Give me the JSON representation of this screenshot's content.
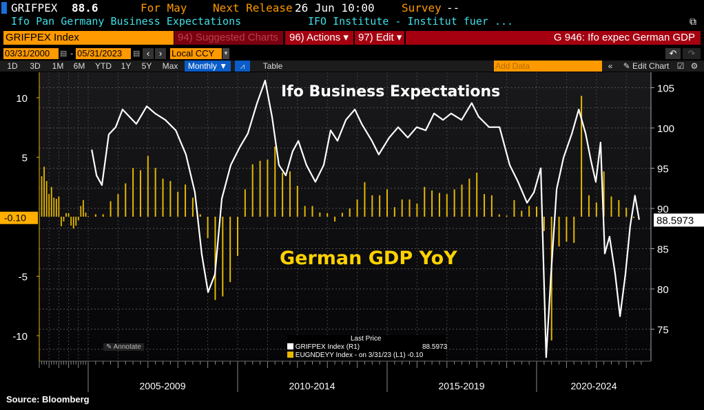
{
  "header": {
    "ticker": "GRIFPEX",
    "value": "88.6",
    "period": "For May",
    "next_release_label": "Next Release",
    "next_release": "26 Jun 10:00",
    "survey_label": "Survey",
    "survey": "--",
    "description": "Ifo Pan Germany Business Expectations",
    "source": "IFO Institute - Institut fuer ..."
  },
  "toolbar": {
    "security": "GRIFPEX Index",
    "suggested": "94) Suggested Charts",
    "actions": "96) Actions ▾",
    "edit": "97) Edit ▾",
    "chart_name": "G 946: Ifo expec German GDP"
  },
  "dates": {
    "start": "03/31/2000",
    "end": "05/31/2023",
    "currency": "Local CCY"
  },
  "periods": [
    "1D",
    "3D",
    "1M",
    "6M",
    "YTD",
    "1Y",
    "5Y",
    "Max"
  ],
  "frequency": "Monthly ▼",
  "table_label": "Table",
  "add_data_placeholder": "Add Data",
  "edit_chart": "Edit Chart",
  "annotate": "Annotate",
  "source": "Source: Bloomberg",
  "colors": {
    "orange": "#ff9900",
    "red": "#a50010",
    "bar": "#e6b800",
    "line": "#ffffff",
    "cyan": "#3ee0e8"
  },
  "chart_data": {
    "type": "bar+line",
    "title": "Ifo Business Expectations",
    "annotation": "German GDP YoY",
    "x_labels": [
      "2005-2009",
      "2010-2014",
      "2015-2019",
      "2020-2024"
    ],
    "left_axis": {
      "ticks": [
        10,
        5,
        -5,
        -10
      ],
      "range": [
        -12,
        12
      ],
      "last_label": "-0.10"
    },
    "right_axis": {
      "ticks": [
        105,
        100,
        95,
        90,
        85,
        80,
        75
      ],
      "range": [
        71.5,
        107.5
      ],
      "last_label": "88.5973"
    },
    "legend": {
      "header": "Last Price",
      "items": [
        {
          "name": "GRIFPEX Index  (R1)",
          "value": "88.5973",
          "color": "#ffffff"
        },
        {
          "name": "EUGNDEYY Index -  on 3/31/23  (L1)",
          "value": "-0.10",
          "color": "#e6b800"
        }
      ]
    },
    "gdp_start_quarter": "2000Q1",
    "gdp_yoy": [
      3.4,
      4.2,
      3.0,
      1.9,
      2.5,
      1.6,
      1.5,
      1.7,
      -0.8,
      -0.4,
      0.3,
      0.3,
      -0.75,
      -1.0,
      -0.75,
      -0.3,
      0.9,
      1.4,
      0.35,
      0.05,
      0.2,
      0.2,
      1.3,
      1.9,
      2.8,
      4.1,
      3.9,
      5.1,
      4.1,
      3.2,
      3.0,
      2.1,
      2.7,
      1.6,
      0.2,
      -1.8,
      -7.0,
      -6.7,
      -5.5,
      -3.3,
      2.3,
      4.4,
      4.7,
      4.8,
      5.9,
      3.7,
      3.8,
      2.6,
      0.9,
      0.9,
      0.35,
      0.3,
      -0.4,
      0.33,
      0.7,
      1.45,
      2.9,
      1.8,
      1.8,
      2.3,
      0.8,
      1.45,
      1.45,
      1.1,
      2.5,
      2.2,
      2.0,
      1.9,
      2.3,
      2.7,
      3.2,
      3.7,
      1.9,
      1.8,
      0.2,
      0.1,
      1.4,
      0.5,
      0.9,
      0.85,
      -1.2,
      -10.4,
      -2.5,
      -2.1,
      -2.2,
      10.15,
      1.8,
      1.2,
      3.8,
      1.7,
      1.4,
      0.75,
      -0.1
    ],
    "ifo": [
      [
        2005.12,
        97.3
      ],
      [
        2005.28,
        94.1
      ],
      [
        2005.46,
        92.9
      ],
      [
        2005.69,
        99.2
      ],
      [
        2005.92,
        100.1
      ],
      [
        2006.15,
        102.3
      ],
      [
        2006.38,
        101.4
      ],
      [
        2006.61,
        100.5
      ],
      [
        2006.96,
        102.7
      ],
      [
        2007.24,
        101.8
      ],
      [
        2007.58,
        101.0
      ],
      [
        2007.93,
        99.7
      ],
      [
        2008.27,
        96.7
      ],
      [
        2008.57,
        92.0
      ],
      [
        2008.8,
        84.3
      ],
      [
        2009.01,
        79.6
      ],
      [
        2009.24,
        81.8
      ],
      [
        2009.47,
        91.2
      ],
      [
        2009.77,
        95.4
      ],
      [
        2010.07,
        97.6
      ],
      [
        2010.34,
        99.3
      ],
      [
        2010.65,
        103.1
      ],
      [
        2010.92,
        105.9
      ],
      [
        2011.15,
        101.4
      ],
      [
        2011.38,
        95.4
      ],
      [
        2011.61,
        94.1
      ],
      [
        2011.84,
        97.1
      ],
      [
        2012.03,
        98.4
      ],
      [
        2012.3,
        95.4
      ],
      [
        2012.6,
        93.3
      ],
      [
        2012.88,
        95.4
      ],
      [
        2013.11,
        99.7
      ],
      [
        2013.34,
        98.4
      ],
      [
        2013.62,
        101.0
      ],
      [
        2013.92,
        102.3
      ],
      [
        2014.15,
        100.5
      ],
      [
        2014.49,
        98.4
      ],
      [
        2014.72,
        96.7
      ],
      [
        2015.07,
        98.8
      ],
      [
        2015.37,
        100.1
      ],
      [
        2015.69,
        98.8
      ],
      [
        2015.99,
        100.1
      ],
      [
        2016.29,
        99.7
      ],
      [
        2016.57,
        101.8
      ],
      [
        2016.87,
        101.0
      ],
      [
        2017.14,
        101.8
      ],
      [
        2017.49,
        101.0
      ],
      [
        2017.83,
        103.1
      ],
      [
        2018.06,
        101.4
      ],
      [
        2018.41,
        100.1
      ],
      [
        2018.76,
        100.1
      ],
      [
        2019.1,
        95.4
      ],
      [
        2019.38,
        93.3
      ],
      [
        2019.68,
        90.7
      ],
      [
        2019.91,
        92.0
      ],
      [
        2020.14,
        95.0
      ],
      [
        2020.32,
        71.5
      ],
      [
        2020.48,
        81.7
      ],
      [
        2020.67,
        92.4
      ],
      [
        2020.9,
        96.3
      ],
      [
        2021.18,
        99.3
      ],
      [
        2021.41,
        102.3
      ],
      [
        2021.64,
        99.3
      ],
      [
        2021.82,
        95.9
      ],
      [
        2021.98,
        93.3
      ],
      [
        2022.14,
        98.2
      ],
      [
        2022.28,
        84.4
      ],
      [
        2022.44,
        86.5
      ],
      [
        2022.63,
        81.8
      ],
      [
        2022.79,
        76.6
      ],
      [
        2022.97,
        81.8
      ],
      [
        2023.13,
        87.8
      ],
      [
        2023.29,
        91.6
      ],
      [
        2023.43,
        88.6
      ]
    ]
  }
}
